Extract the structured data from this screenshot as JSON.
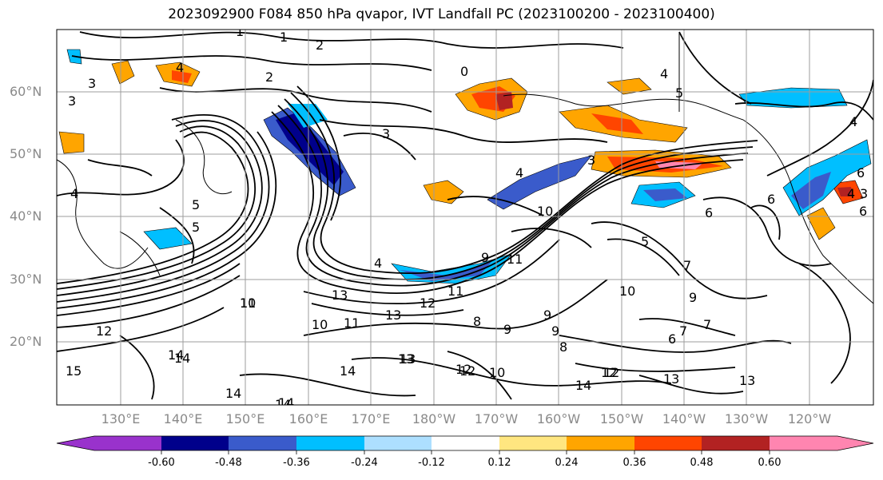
{
  "title": "2023092900 F084 850 hPa qvapor, IVT Landfall PC (2023100200 - 2023100400)",
  "lat_labels": [
    "60°N",
    "50°N",
    "40°N",
    "30°N",
    "20°N"
  ],
  "lon_labels": [
    "130°E",
    "140°E",
    "150°E",
    "160°E",
    "170°E",
    "180°W",
    "170°W",
    "160°W",
    "150°W",
    "140°W",
    "130°W",
    "120°W"
  ],
  "colorbar": {
    "colors": [
      "#9932CC",
      "#00008B",
      "#3A5BCB",
      "#00BFFF",
      "#ADDFFF",
      "#FFFFFF",
      "#FFE680",
      "#FFA500",
      "#FF4500",
      "#B22222",
      "#FF85B0"
    ],
    "tick_labels": [
      "-0.60",
      "-0.48",
      "-0.36",
      "-0.24",
      "-0.12",
      "0.12",
      "0.24",
      "0.36",
      "0.48",
      "0.60"
    ]
  },
  "contour_labels": [
    "1",
    "1",
    "2",
    "2",
    "3",
    "3",
    "0",
    "4",
    "5",
    "4",
    "3",
    "3",
    "4",
    "5",
    "6",
    "5",
    "7",
    "10",
    "9",
    "9",
    "10",
    "11",
    "12",
    "13",
    "14",
    "14",
    "13",
    "12",
    "10",
    "7",
    "9",
    "14",
    "12",
    "13",
    "14",
    "10",
    "11",
    "13",
    "14",
    "4",
    "6",
    "6",
    "4",
    "5",
    "4",
    "3",
    "8",
    "9",
    "6",
    "8",
    "7",
    "12",
    "13",
    "11",
    "12",
    "14",
    "10",
    "9",
    "11",
    "13",
    "12",
    "14",
    "15",
    "4",
    "6"
  ]
}
